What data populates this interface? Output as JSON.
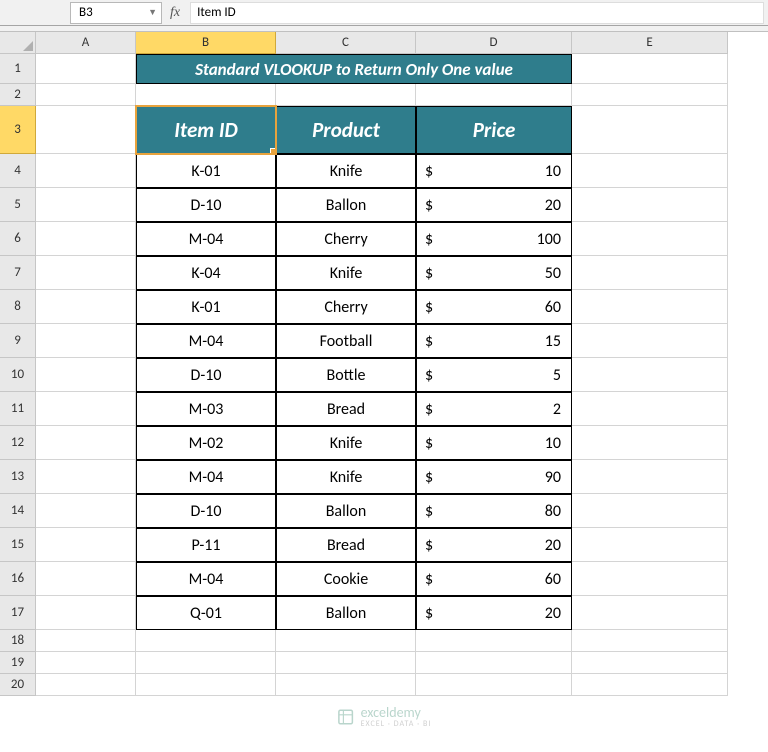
{
  "formula_bar": {
    "cell_ref": "B3",
    "fx_label": "fx",
    "formula": "Item ID"
  },
  "columns": [
    "A",
    "B",
    "C",
    "D",
    "E"
  ],
  "row_numbers": [
    1,
    2,
    3,
    4,
    5,
    6,
    7,
    8,
    9,
    10,
    11,
    12,
    13,
    14,
    15,
    16,
    17,
    18,
    19,
    20
  ],
  "selected": {
    "col": "B",
    "row": 3
  },
  "title": "Standard VLOOKUP to Return Only One value",
  "table": {
    "headers": {
      "item_id": "Item ID",
      "product": "Product",
      "price": "Price"
    },
    "currency": "$",
    "rows": [
      {
        "id": "K-01",
        "product": "Knife",
        "price": 10
      },
      {
        "id": "D-10",
        "product": "Ballon",
        "price": 20
      },
      {
        "id": "M-04",
        "product": "Cherry",
        "price": 100
      },
      {
        "id": "K-04",
        "product": "Knife",
        "price": 50
      },
      {
        "id": "K-01",
        "product": "Cherry",
        "price": 60
      },
      {
        "id": "M-04",
        "product": "Football",
        "price": 15
      },
      {
        "id": "D-10",
        "product": "Bottle",
        "price": 5
      },
      {
        "id": "M-03",
        "product": "Bread",
        "price": 2
      },
      {
        "id": "M-02",
        "product": "Knife",
        "price": 10
      },
      {
        "id": "M-04",
        "product": "Knife",
        "price": 90
      },
      {
        "id": "D-10",
        "product": "Ballon",
        "price": 80
      },
      {
        "id": "P-11",
        "product": "Bread",
        "price": 20
      },
      {
        "id": "M-04",
        "product": "Cookie",
        "price": 60
      },
      {
        "id": "Q-01",
        "product": "Ballon",
        "price": 20
      }
    ]
  },
  "colors": {
    "teal": "#2f7d8c",
    "selected_header": "#ffd966",
    "selection_border": "#e8a33d",
    "grid": "#d4d4d4"
  },
  "row_heights": {
    "title": 30,
    "header": 48,
    "data": 34,
    "default": 22
  },
  "watermark": {
    "name": "exceldemy",
    "sub": "EXCEL · DATA · BI"
  }
}
